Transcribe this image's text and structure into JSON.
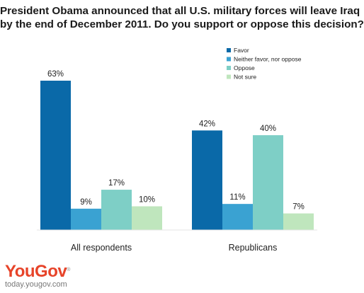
{
  "title_lines": [
    "President Obama announced that all U.S. military forces will leave Iraq",
    "by the end of December 2011. Do you support or oppose this decision?"
  ],
  "colors": {
    "Favor": "#0a69a8",
    "Neither favor, nor oppose": "#3aa2d2",
    "Oppose": "#7ecfc6",
    "Not sure": "#bfe6bd"
  },
  "chart_data": {
    "type": "bar",
    "title": "President Obama announced that all U.S. military forces will leave Iraq by the end of December 2011. Do you support or oppose this decision?",
    "xlabel": "",
    "ylabel": "",
    "ylim": [
      0,
      63
    ],
    "grid": false,
    "legend_position": "top-right",
    "categories": [
      "All respondents",
      "Republicans"
    ],
    "series": [
      {
        "name": "Favor",
        "values": [
          63,
          42
        ],
        "labels": [
          "63%",
          "42%"
        ]
      },
      {
        "name": "Neither favor, nor oppose",
        "values": [
          9,
          11
        ],
        "labels": [
          "9%",
          "11%"
        ]
      },
      {
        "name": "Oppose",
        "values": [
          17,
          40
        ],
        "labels": [
          "17%",
          "40%"
        ]
      },
      {
        "name": "Not sure",
        "values": [
          10,
          7
        ],
        "labels": [
          "10%",
          "7%"
        ]
      }
    ]
  },
  "branding": {
    "logo_part1": "You",
    "logo_part2": "Gov",
    "logo_mark": "®",
    "site": "today.yougov.com"
  }
}
